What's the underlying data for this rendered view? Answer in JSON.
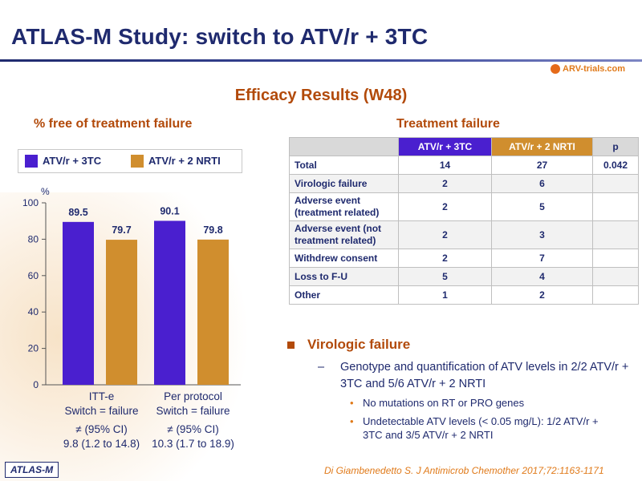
{
  "slide": {
    "title": "ATLAS-M Study: switch to ATV/r + 3TC",
    "logo_text": "ARV-trials.com",
    "section_title": "Efficacy Results (W48)",
    "left_subtitle": "% free of treatment failure",
    "right_subtitle": "Treatment failure",
    "footer_badge": "ATLAS-M",
    "citation": "Di Giambenedetto S. J Antimicrob Chemother 2017;72:1163-1171"
  },
  "colors": {
    "series1": "#4a1fcf",
    "series2": "#d08e2e",
    "title": "#1f2a6e",
    "accent": "#b24a0a"
  },
  "chart_data": {
    "type": "bar",
    "categories": [
      "ITT-e",
      "Per protocol"
    ],
    "category_sublabels": [
      "Switch = failure",
      "Switch = failure"
    ],
    "category_stats": [
      "≠ (95% CI)",
      "≠ (95% CI)"
    ],
    "category_ci": [
      "9.8 (1.2 to 14.8)",
      "10.3 (1.7 to 18.9)"
    ],
    "series": [
      {
        "name": "ATV/r + 3TC",
        "values": [
          89.5,
          90.1
        ],
        "labels": [
          "89.5",
          "90.1"
        ]
      },
      {
        "name": "ATV/r + 2 NRTI",
        "values": [
          79.7,
          79.8
        ],
        "labels": [
          "79.7",
          "79.8"
        ]
      }
    ],
    "ylabel": "%",
    "ylim": [
      0,
      100
    ],
    "yticks": [
      "0",
      "20",
      "40",
      "60",
      "80",
      "100"
    ],
    "grid": false,
    "legend_position": "top"
  },
  "table": {
    "headers": [
      "",
      "ATV/r + 3TC",
      "ATV/r + 2 NRTI",
      "p"
    ],
    "rows": [
      {
        "label": "Total",
        "c1": "14",
        "c2": "27",
        "p": "0.042"
      },
      {
        "label": "Virologic failure",
        "c1": "2",
        "c2": "6",
        "p": ""
      },
      {
        "label": "Adverse event (treatment related)",
        "c1": "2",
        "c2": "5",
        "p": ""
      },
      {
        "label": "Adverse event (not treatment related)",
        "c1": "2",
        "c2": "3",
        "p": ""
      },
      {
        "label": "Withdrew consent",
        "c1": "2",
        "c2": "7",
        "p": ""
      },
      {
        "label": "Loss to F-U",
        "c1": "5",
        "c2": "4",
        "p": ""
      },
      {
        "label": "Other",
        "c1": "1",
        "c2": "2",
        "p": ""
      }
    ]
  },
  "notes": {
    "heading": "Virologic failure",
    "dash": "–",
    "dash_text": "Genotype and quantification of ATV levels in 2/2 ATV/r + 3TC and 5/6 ATV/r + 2 NRTI",
    "dot1": "No mutations on RT or PRO genes",
    "dot2": "Undetectable ATV levels (< 0.05 mg/L): 1/2 ATV/r + 3TC and 3/5 ATV/r + 2 NRTI"
  }
}
